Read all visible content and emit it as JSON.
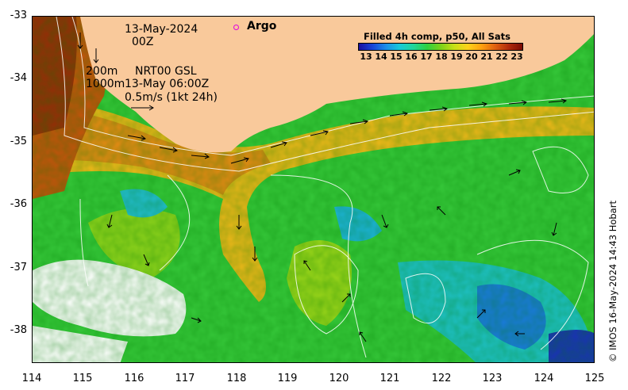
{
  "header": {
    "date": "13-May-2024",
    "time": "00Z",
    "contour_line_1": "200m",
    "contour_line_2": "1000m",
    "product": "NRT00 GSL",
    "product_time": "13-May 06:00Z",
    "scale_label": "0.5m/s (1kt 24h)"
  },
  "legend": {
    "argo_label": "Argo",
    "argo_color": "#e000e0"
  },
  "colorbar": {
    "title": "Filled 4h comp, p50, All Sats",
    "ticks": [
      "13",
      "14",
      "15",
      "16",
      "17",
      "18",
      "19",
      "20",
      "21",
      "22",
      "23"
    ]
  },
  "axes": {
    "x_ticks": [
      "114",
      "115",
      "116",
      "117",
      "118",
      "119",
      "120",
      "121",
      "122",
      "123",
      "124",
      "125"
    ],
    "y_ticks": [
      "-33",
      "-34",
      "-35",
      "-36",
      "-37",
      "-38"
    ]
  },
  "credit": "© IMOS 16-May-2024 14:43 Hobart",
  "colors": {
    "land": "#f9c99b",
    "no_data": "#ffffff",
    "warm": "#e07a10",
    "mid": "#2ed040"
  }
}
